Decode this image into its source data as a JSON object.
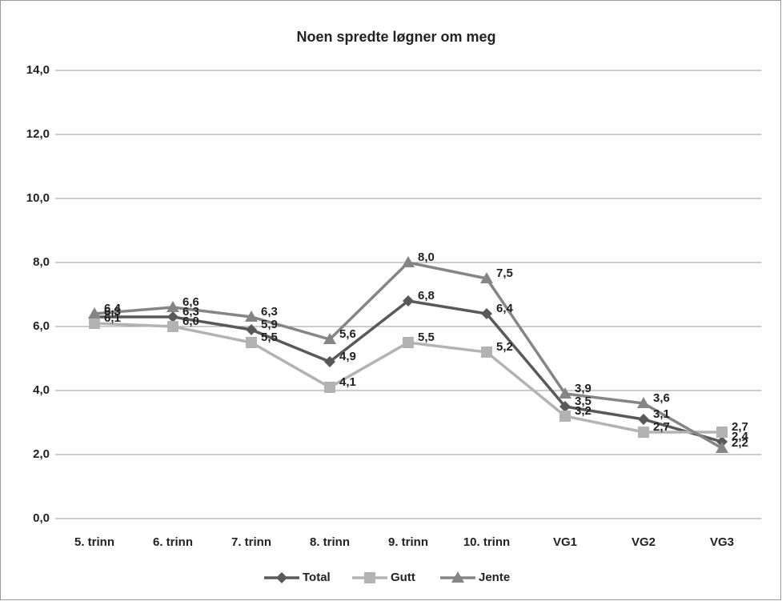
{
  "chart_data": {
    "type": "line",
    "title": "Noen spredte løgner om meg",
    "categories": [
      "5. trinn",
      "6. trinn",
      "7. trinn",
      "8. trinn",
      "9. trinn",
      "10. trinn",
      "VG1",
      "VG2",
      "VG3"
    ],
    "series": [
      {
        "name": "Total",
        "color": "#595959",
        "marker": "diamond",
        "values": [
          6.3,
          6.3,
          5.9,
          4.9,
          6.8,
          6.4,
          3.5,
          3.1,
          2.4
        ],
        "value_labels": [
          "6,3",
          "6,3",
          "5,9",
          "4,9",
          "6,8",
          "6,4",
          "3,5",
          "3,1",
          "2,4"
        ]
      },
      {
        "name": "Gutt",
        "color": "#b3b3b3",
        "marker": "square",
        "values": [
          6.1,
          6.0,
          5.5,
          4.1,
          5.5,
          5.2,
          3.2,
          2.7,
          2.7
        ],
        "value_labels": [
          "6,1",
          "6,0",
          "5,5",
          "4,1",
          "5,5",
          "5,2",
          "3,2",
          "2,7",
          "2,7"
        ]
      },
      {
        "name": "Jente",
        "color": "#858585",
        "marker": "triangle",
        "values": [
          6.4,
          6.6,
          6.3,
          5.6,
          8.0,
          7.5,
          3.9,
          3.6,
          2.2
        ],
        "value_labels": [
          "6,4",
          "6,6",
          "6,3",
          "5,6",
          "8,0",
          "7,5",
          "3,9",
          "3,6",
          "2,2"
        ]
      }
    ],
    "ylim": [
      0,
      14
    ],
    "yticks": [
      {
        "value": 0,
        "label": "0,0"
      },
      {
        "value": 2,
        "label": "2,0"
      },
      {
        "value": 4,
        "label": "4,0"
      },
      {
        "value": 6,
        "label": "6,0"
      },
      {
        "value": 8,
        "label": "8,0"
      },
      {
        "value": 10,
        "label": "10,0"
      },
      {
        "value": 12,
        "label": "12,0"
      },
      {
        "value": 14,
        "label": "14,0"
      }
    ],
    "grid": true,
    "legend": "bottom"
  }
}
